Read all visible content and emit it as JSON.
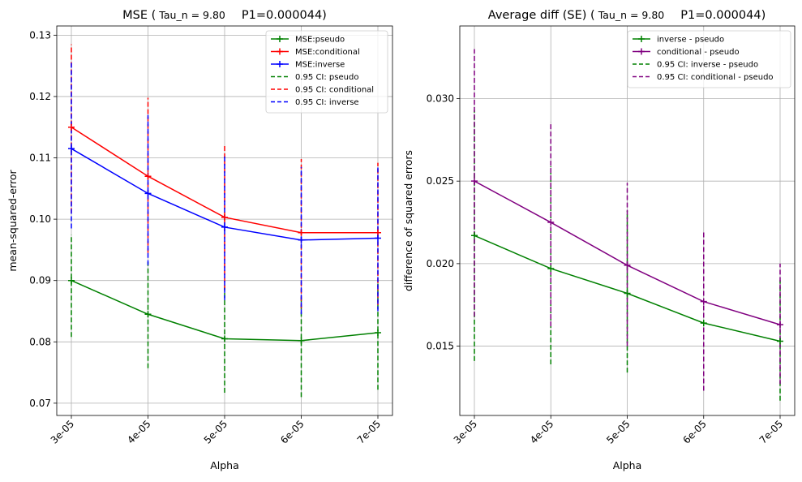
{
  "chart_data": [
    {
      "type": "line",
      "title_prefix": "MSE (",
      "title_tau": "Tau_n = 9.80",
      "title_suffix": "P1=0.000044)",
      "xlabel": "Alpha",
      "ylabel": "mean-squared-error",
      "categories": [
        "3e-05",
        "4e-05",
        "5e-05",
        "6e-05",
        "7e-05"
      ],
      "ylim": [
        0.068,
        0.1315
      ],
      "yticks": [
        0.07,
        0.08,
        0.09,
        0.1,
        0.11,
        0.12,
        0.13
      ],
      "ytick_labels": [
        "0.07",
        "0.08",
        "0.09",
        "0.10",
        "0.11",
        "0.12",
        "0.13"
      ],
      "legend_position": "top-right",
      "series": [
        {
          "name": "MSE:pseudo",
          "color": "#008000",
          "values": [
            0.09,
            0.0845,
            0.0805,
            0.0802,
            0.0815
          ]
        },
        {
          "name": "MSE:conditional",
          "color": "#ff0000",
          "values": [
            0.115,
            0.107,
            0.1003,
            0.0978,
            0.0978
          ]
        },
        {
          "name": "MSE:inverse",
          "color": "#0000ff",
          "values": [
            0.1115,
            0.1042,
            0.0987,
            0.0966,
            0.0969
          ]
        }
      ],
      "ci": [
        {
          "name": "0.95 CI: pseudo",
          "color": "#008000",
          "low": [
            0.0808,
            0.0757,
            0.0717,
            0.071,
            0.0722
          ],
          "high": [
            0.0975,
            0.093,
            0.089,
            0.0875,
            0.0895
          ]
        },
        {
          "name": "0.95 CI: conditional",
          "color": "#ff0000",
          "low": [
            0.101,
            0.0945,
            0.0885,
            0.0855,
            0.086
          ],
          "high": [
            0.1285,
            0.1198,
            0.1122,
            0.1098,
            0.1092
          ]
        },
        {
          "name": "0.95 CI: inverse",
          "color": "#0000ff",
          "low": [
            0.0985,
            0.0925,
            0.0868,
            0.0845,
            0.085
          ],
          "high": [
            0.1255,
            0.117,
            0.1103,
            0.1085,
            0.1088
          ]
        }
      ]
    },
    {
      "type": "line",
      "title_prefix": "Average diff (SE) (",
      "title_tau": "Tau_n = 9.80",
      "title_suffix": "P1=0.000044)",
      "xlabel": "Alpha",
      "ylabel": "difference of squared errors",
      "categories": [
        "3e-05",
        "4e-05",
        "5e-05",
        "6e-05",
        "7e-05"
      ],
      "ylim": [
        0.0108,
        0.0344
      ],
      "yticks": [
        0.015,
        0.02,
        0.025,
        0.03
      ],
      "ytick_labels": [
        "0.015",
        "0.020",
        "0.025",
        "0.030"
      ],
      "legend_position": "top-right",
      "series": [
        {
          "name": "inverse - pseudo",
          "color": "#008000",
          "values": [
            0.0217,
            0.0197,
            0.0182,
            0.0164,
            0.0153
          ]
        },
        {
          "name": "conditional - pseudo",
          "color": "#800080",
          "values": [
            0.025,
            0.0225,
            0.0199,
            0.0177,
            0.0163
          ]
        }
      ],
      "ci": [
        {
          "name": "0.95 CI: inverse - pseudo",
          "color": "#008000",
          "low": [
            0.0141,
            0.0139,
            0.0134,
            0.0123,
            0.0117
          ],
          "high": [
            0.0293,
            0.0259,
            0.0232,
            0.0205,
            0.019
          ]
        },
        {
          "name": "0.95 CI: conditional - pseudo",
          "color": "#800080",
          "low": [
            0.0168,
            0.0162,
            0.015,
            0.0123,
            0.0127
          ],
          "high": [
            0.033,
            0.0286,
            0.0249,
            0.0219,
            0.02
          ]
        }
      ]
    }
  ]
}
